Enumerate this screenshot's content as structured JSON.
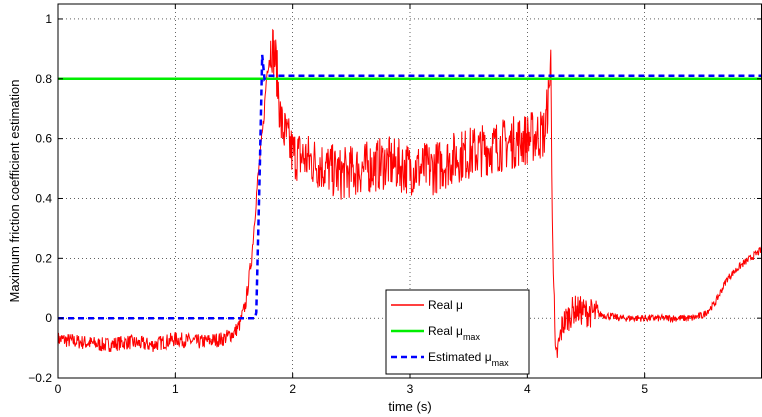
{
  "chart_data": {
    "type": "line",
    "xlabel": "time (s)",
    "ylabel": "Maximum friction coefficient estimation",
    "xlim": [
      0,
      6
    ],
    "ylim": [
      -0.2,
      1.05
    ],
    "xticks": [
      0,
      1,
      2,
      3,
      4,
      5
    ],
    "yticks": [
      -0.2,
      0,
      0.2,
      0.4,
      0.6,
      0.8,
      1
    ],
    "xtick_labels": [
      "0",
      "1",
      "2",
      "3",
      "4",
      "5"
    ],
    "ytick_labels": [
      "−0.2",
      "0",
      "0.2",
      "0.4",
      "0.6",
      "0.8",
      "1"
    ],
    "grid": true,
    "legend_position": "lower-center",
    "series": [
      {
        "name": "Real μ",
        "name_base": "Real μ",
        "name_sub": "",
        "color": "#ff0000",
        "style": "solid",
        "noisy": true,
        "x": [
          0,
          0.2,
          0.4,
          0.6,
          0.8,
          1.0,
          1.2,
          1.4,
          1.5,
          1.55,
          1.6,
          1.65,
          1.7,
          1.75,
          1.78,
          1.82,
          1.86,
          1.9,
          2.0,
          2.2,
          2.4,
          2.6,
          2.8,
          3.0,
          3.2,
          3.4,
          3.6,
          3.8,
          4.0,
          4.15,
          4.19,
          4.2,
          4.21,
          4.24,
          4.3,
          4.4,
          4.5,
          4.8,
          5.0,
          5.2,
          5.4,
          5.5,
          5.6,
          5.7,
          5.8,
          5.9,
          6.0
        ],
        "y": [
          -0.07,
          -0.08,
          -0.09,
          -0.08,
          -0.09,
          -0.07,
          -0.08,
          -0.07,
          -0.05,
          -0.02,
          0.05,
          0.2,
          0.45,
          0.65,
          0.82,
          0.92,
          0.85,
          0.65,
          0.55,
          0.52,
          0.48,
          0.5,
          0.52,
          0.5,
          0.5,
          0.54,
          0.56,
          0.58,
          0.6,
          0.62,
          0.78,
          0.9,
          0.4,
          -0.15,
          -0.02,
          0.03,
          0.02,
          0.0,
          0.0,
          0.0,
          0.0,
          0.01,
          0.05,
          0.13,
          0.17,
          0.2,
          0.23
        ]
      },
      {
        "name": "Real μ_max",
        "name_base": "Real μ",
        "name_sub": "max",
        "color": "#00ee00",
        "style": "solid",
        "noisy": false,
        "x": [
          0,
          6
        ],
        "y": [
          0.8,
          0.8
        ]
      },
      {
        "name": "Estimated μ_max",
        "name_base": "Estimated μ",
        "name_sub": "max",
        "color": "#0000ff",
        "style": "dashed",
        "noisy": false,
        "x": [
          0,
          1.68,
          1.69,
          1.72,
          1.74,
          1.76,
          1.78,
          1.82,
          6
        ],
        "y": [
          0,
          0,
          0.02,
          0.5,
          0.88,
          0.8,
          0.81,
          0.81,
          0.81
        ]
      }
    ]
  }
}
